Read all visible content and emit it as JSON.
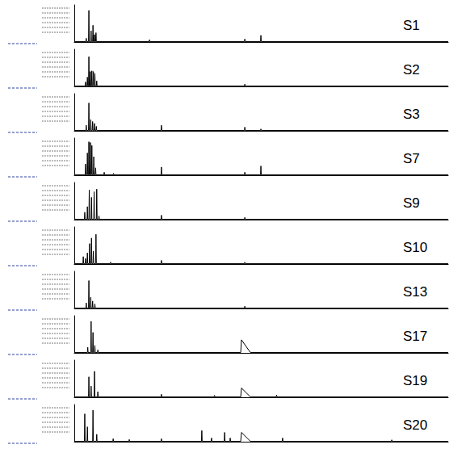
{
  "chart_data": [
    {
      "type": "line",
      "title": "S1",
      "color": "#000000",
      "xlim": [
        0,
        100
      ],
      "ylim": [
        0,
        100
      ],
      "tick_labels": false,
      "x": [
        0,
        3.1,
        3.2,
        3.3,
        3.8,
        3.9,
        4.0,
        4.4,
        4.5,
        4.6,
        4.9,
        5.0,
        5.1,
        5.3,
        5.4,
        5.5,
        5.7,
        5.8,
        5.9,
        20.0,
        20.1,
        20.2,
        45.5,
        45.6,
        45.7,
        49.8,
        49.9,
        50.0,
        100
      ],
      "values": [
        1,
        1,
        10,
        1,
        1,
        85,
        1,
        1,
        30,
        1,
        1,
        45,
        1,
        1,
        20,
        1,
        1,
        25,
        1,
        1,
        6,
        1,
        1,
        8,
        1,
        1,
        18,
        1,
        1
      ]
    },
    {
      "type": "line",
      "title": "S2",
      "color": "#000000",
      "xlim": [
        0,
        100
      ],
      "ylim": [
        0,
        100
      ],
      "tick_labels": false,
      "x": [
        0,
        2.9,
        3.0,
        3.1,
        3.4,
        3.5,
        3.6,
        3.8,
        3.9,
        4.0,
        4.2,
        4.3,
        4.4,
        4.6,
        4.7,
        4.8,
        5.0,
        5.1,
        5.2,
        5.4,
        5.5,
        5.6,
        5.9,
        6.0,
        6.1,
        45.5,
        45.6,
        45.7,
        100
      ],
      "values": [
        1,
        1,
        12,
        1,
        1,
        25,
        1,
        1,
        80,
        1,
        1,
        40,
        1,
        1,
        42,
        1,
        1,
        40,
        1,
        1,
        35,
        1,
        1,
        15,
        1,
        1,
        6,
        1,
        1
      ]
    },
    {
      "type": "line",
      "title": "S3",
      "color": "#000000",
      "xlim": [
        0,
        100
      ],
      "ylim": [
        0,
        100
      ],
      "tick_labels": false,
      "x": [
        0,
        3.1,
        3.2,
        3.3,
        3.8,
        3.9,
        4.0,
        4.3,
        4.4,
        4.5,
        4.8,
        4.9,
        5.0,
        5.3,
        5.4,
        5.5,
        5.8,
        5.9,
        6.0,
        23.2,
        23.3,
        23.4,
        45.5,
        45.6,
        45.7,
        49.8,
        49.9,
        50.0,
        100
      ],
      "values": [
        1,
        1,
        15,
        1,
        1,
        75,
        1,
        1,
        30,
        1,
        1,
        25,
        1,
        1,
        20,
        1,
        1,
        12,
        1,
        1,
        15,
        1,
        1,
        10,
        1,
        1,
        5,
        1,
        1
      ]
    },
    {
      "type": "line",
      "title": "S7",
      "color": "#000000",
      "xlim": [
        0,
        100
      ],
      "ylim": [
        0,
        100
      ],
      "tick_labels": false,
      "x": [
        0,
        2.9,
        3.0,
        3.1,
        3.4,
        3.5,
        3.6,
        3.8,
        3.9,
        4.0,
        4.2,
        4.3,
        4.4,
        4.6,
        4.7,
        4.8,
        5.1,
        5.2,
        5.3,
        5.6,
        5.7,
        5.8,
        7.9,
        8.0,
        8.1,
        10.4,
        10.5,
        10.6,
        23.2,
        23.3,
        23.4,
        45.5,
        45.6,
        45.7,
        49.8,
        49.9,
        50.0,
        100
      ],
      "values": [
        1,
        1,
        30,
        1,
        1,
        60,
        1,
        1,
        90,
        1,
        1,
        88,
        1,
        1,
        80,
        1,
        1,
        50,
        1,
        1,
        20,
        1,
        1,
        8,
        1,
        1,
        5,
        1,
        1,
        22,
        1,
        1,
        8,
        1,
        1,
        25,
        1,
        1
      ]
    },
    {
      "type": "line",
      "title": "S9",
      "color": "#000000",
      "xlim": [
        0,
        100
      ],
      "ylim": [
        0,
        100
      ],
      "tick_labels": false,
      "x": [
        0,
        2.7,
        2.8,
        2.9,
        3.4,
        3.5,
        3.6,
        3.9,
        4.0,
        4.1,
        4.5,
        4.6,
        4.7,
        5.2,
        5.3,
        5.4,
        5.9,
        6.0,
        6.1,
        6.5,
        6.6,
        6.7,
        23.2,
        23.3,
        23.4,
        45.5,
        45.6,
        45.7,
        100
      ],
      "values": [
        1,
        1,
        20,
        1,
        1,
        35,
        1,
        1,
        80,
        1,
        1,
        60,
        1,
        1,
        75,
        1,
        1,
        82,
        1,
        1,
        10,
        1,
        1,
        12,
        1,
        1,
        6,
        1,
        1
      ]
    },
    {
      "type": "line",
      "title": "S10",
      "color": "#000000",
      "xlim": [
        0,
        100
      ],
      "ylim": [
        0,
        100
      ],
      "tick_labels": false,
      "x": [
        0,
        2.3,
        2.4,
        2.5,
        2.9,
        3.0,
        3.1,
        3.4,
        3.5,
        3.6,
        4.0,
        4.1,
        4.2,
        4.5,
        4.6,
        4.7,
        5.0,
        5.1,
        5.2,
        5.7,
        5.8,
        5.9,
        9.6,
        9.7,
        9.8,
        23.2,
        23.3,
        23.4,
        45.5,
        45.6,
        45.7,
        100
      ],
      "values": [
        1,
        1,
        20,
        1,
        1,
        15,
        1,
        1,
        30,
        1,
        1,
        55,
        1,
        1,
        70,
        1,
        1,
        35,
        1,
        1,
        80,
        1,
        1,
        5,
        1,
        1,
        10,
        1,
        1,
        5,
        1,
        1
      ]
    },
    {
      "type": "line",
      "title": "S13",
      "color": "#000000",
      "xlim": [
        0,
        100
      ],
      "ylim": [
        0,
        100
      ],
      "tick_labels": false,
      "x": [
        0,
        3.1,
        3.2,
        3.3,
        3.8,
        3.9,
        4.0,
        4.3,
        4.4,
        4.5,
        4.8,
        4.9,
        5.0,
        5.4,
        5.5,
        5.6,
        45.5,
        45.6,
        45.7,
        100
      ],
      "values": [
        1,
        1,
        15,
        1,
        1,
        75,
        1,
        1,
        30,
        1,
        1,
        20,
        1,
        1,
        12,
        1,
        1,
        6,
        1,
        1
      ]
    },
    {
      "type": "line",
      "title": "S17",
      "color": "#000000",
      "xlim": [
        0,
        100
      ],
      "ylim": [
        0,
        100
      ],
      "tick_labels": false,
      "x": [
        0,
        3.5,
        3.6,
        3.7,
        4.4,
        4.5,
        4.6,
        4.9,
        5.0,
        5.1,
        5.4,
        5.5,
        5.6,
        6.2,
        6.3,
        6.4,
        44.5,
        44.7,
        47.1,
        100
      ],
      "values": [
        1,
        1,
        15,
        1,
        1,
        85,
        1,
        1,
        55,
        1,
        1,
        20,
        1,
        1,
        8,
        1,
        1,
        35,
        1,
        1
      ]
    },
    {
      "type": "line",
      "title": "S19",
      "color": "#000000",
      "xlim": [
        0,
        100
      ],
      "ylim": [
        0,
        100
      ],
      "tick_labels": false,
      "x": [
        0,
        3.8,
        3.9,
        4.0,
        4.4,
        4.5,
        4.6,
        5.3,
        5.4,
        5.5,
        6.2,
        6.3,
        6.4,
        23.2,
        23.3,
        23.4,
        37.4,
        37.5,
        37.6,
        44.5,
        44.7,
        47.1,
        54.0,
        54.1,
        54.2,
        100
      ],
      "values": [
        1,
        1,
        55,
        1,
        1,
        30,
        1,
        1,
        70,
        1,
        1,
        15,
        1,
        1,
        8,
        1,
        1,
        5,
        1,
        1,
        25,
        1,
        1,
        6,
        1,
        1
      ]
    },
    {
      "type": "line",
      "title": "S20",
      "color": "#000000",
      "xlim": [
        0,
        100
      ],
      "ylim": [
        0,
        100
      ],
      "tick_labels": false,
      "x": [
        0,
        2.7,
        2.8,
        2.9,
        3.4,
        3.5,
        3.6,
        4.9,
        5.0,
        5.1,
        5.9,
        6.0,
        6.1,
        10.3,
        10.4,
        10.5,
        14.6,
        14.7,
        14.8,
        23.2,
        23.3,
        23.4,
        34.0,
        34.1,
        34.2,
        36.6,
        36.7,
        36.8,
        40.1,
        40.2,
        40.3,
        41.6,
        41.7,
        41.8,
        44.5,
        44.7,
        47.1,
        55.6,
        55.7,
        55.8,
        84.8,
        84.9,
        85.0,
        100
      ],
      "values": [
        1,
        1,
        75,
        1,
        1,
        40,
        1,
        1,
        85,
        1,
        1,
        20,
        1,
        1,
        8,
        1,
        1,
        6,
        1,
        1,
        8,
        1,
        1,
        30,
        1,
        1,
        10,
        1,
        1,
        25,
        1,
        1,
        10,
        1,
        1,
        25,
        1,
        1,
        10,
        1,
        1,
        5,
        1,
        1
      ]
    }
  ]
}
